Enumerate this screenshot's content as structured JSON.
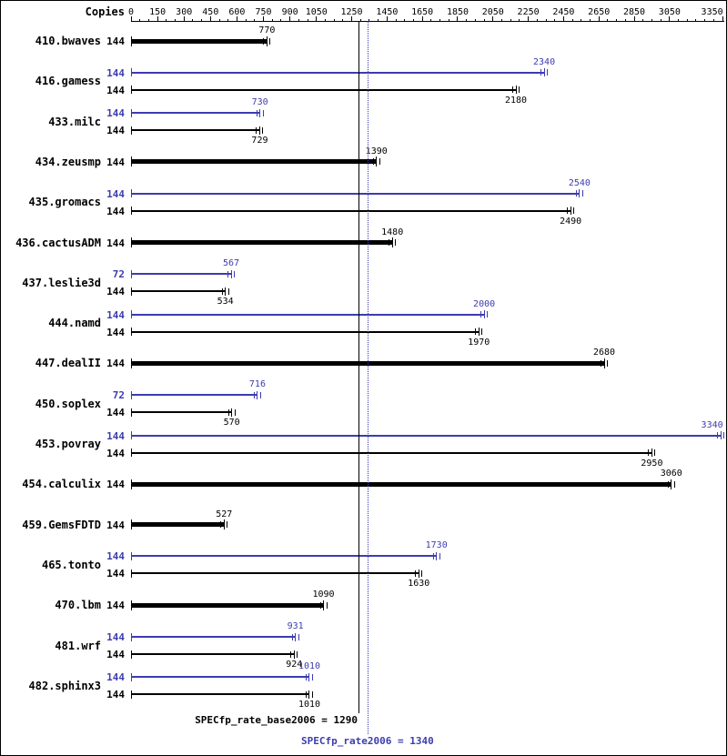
{
  "chart_data": {
    "type": "bar",
    "orientation": "horizontal",
    "copies_column_label": "Copies",
    "xlim": [
      0,
      3360
    ],
    "axis_ticks": [
      0,
      150,
      300,
      450,
      600,
      750,
      900,
      1050,
      1250,
      1450,
      1650,
      1850,
      2050,
      2250,
      2450,
      2650,
      2850,
      3050,
      3350
    ],
    "colors": {
      "peak": "#3c3cb0",
      "base": "#000000"
    },
    "benchmarks": [
      {
        "name": "410.bwaves",
        "bars": [
          {
            "kind": "base",
            "copies": 144,
            "value": 770
          }
        ]
      },
      {
        "name": "416.gamess",
        "bars": [
          {
            "kind": "peak",
            "copies": 144,
            "value": 2340
          },
          {
            "kind": "base",
            "copies": 144,
            "value": 2180
          }
        ]
      },
      {
        "name": "433.milc",
        "bars": [
          {
            "kind": "peak",
            "copies": 144,
            "value": 730
          },
          {
            "kind": "base",
            "copies": 144,
            "value": 729
          }
        ]
      },
      {
        "name": "434.zeusmp",
        "bars": [
          {
            "kind": "base",
            "copies": 144,
            "value": 1390
          }
        ]
      },
      {
        "name": "435.gromacs",
        "bars": [
          {
            "kind": "peak",
            "copies": 144,
            "value": 2540
          },
          {
            "kind": "base",
            "copies": 144,
            "value": 2490
          }
        ]
      },
      {
        "name": "436.cactusADM",
        "bars": [
          {
            "kind": "base",
            "copies": 144,
            "value": 1480
          }
        ]
      },
      {
        "name": "437.leslie3d",
        "bars": [
          {
            "kind": "peak",
            "copies": 72,
            "value": 567
          },
          {
            "kind": "base",
            "copies": 144,
            "value": 534
          }
        ]
      },
      {
        "name": "444.namd",
        "bars": [
          {
            "kind": "peak",
            "copies": 144,
            "value": 2000
          },
          {
            "kind": "base",
            "copies": 144,
            "value": 1970
          }
        ]
      },
      {
        "name": "447.dealII",
        "bars": [
          {
            "kind": "base",
            "copies": 144,
            "value": 2680
          }
        ]
      },
      {
        "name": "450.soplex",
        "bars": [
          {
            "kind": "peak",
            "copies": 72,
            "value": 716
          },
          {
            "kind": "base",
            "copies": 144,
            "value": 570
          }
        ]
      },
      {
        "name": "453.povray",
        "bars": [
          {
            "kind": "peak",
            "copies": 144,
            "value": 3340
          },
          {
            "kind": "base",
            "copies": 144,
            "value": 2950
          }
        ]
      },
      {
        "name": "454.calculix",
        "bars": [
          {
            "kind": "base",
            "copies": 144,
            "value": 3060
          }
        ]
      },
      {
        "name": "459.GemsFDTD",
        "bars": [
          {
            "kind": "base",
            "copies": 144,
            "value": 527
          }
        ]
      },
      {
        "name": "465.tonto",
        "bars": [
          {
            "kind": "peak",
            "copies": 144,
            "value": 1730
          },
          {
            "kind": "base",
            "copies": 144,
            "value": 1630
          }
        ]
      },
      {
        "name": "470.lbm",
        "bars": [
          {
            "kind": "base",
            "copies": 144,
            "value": 1090
          }
        ]
      },
      {
        "name": "481.wrf",
        "bars": [
          {
            "kind": "peak",
            "copies": 144,
            "value": 931
          },
          {
            "kind": "base",
            "copies": 144,
            "value": 924
          }
        ]
      },
      {
        "name": "482.sphinx3",
        "bars": [
          {
            "kind": "peak",
            "copies": 144,
            "value": 1010
          },
          {
            "kind": "base",
            "copies": 144,
            "value": 1010
          }
        ]
      }
    ],
    "reference_lines": [
      {
        "kind": "base",
        "value": 1290,
        "style": "solid",
        "color": "#000000"
      },
      {
        "kind": "peak",
        "value": 1340,
        "style": "dotted",
        "color": "#3c3cb0"
      }
    ],
    "summary": {
      "base": {
        "metric": "SPECfp_rate_base2006",
        "value": 1290,
        "text": "SPECfp_rate_base2006 = 1290"
      },
      "peak": {
        "metric": "SPECfp_rate2006",
        "value": 1340,
        "text": "SPECfp_rate2006 = 1340"
      }
    }
  }
}
